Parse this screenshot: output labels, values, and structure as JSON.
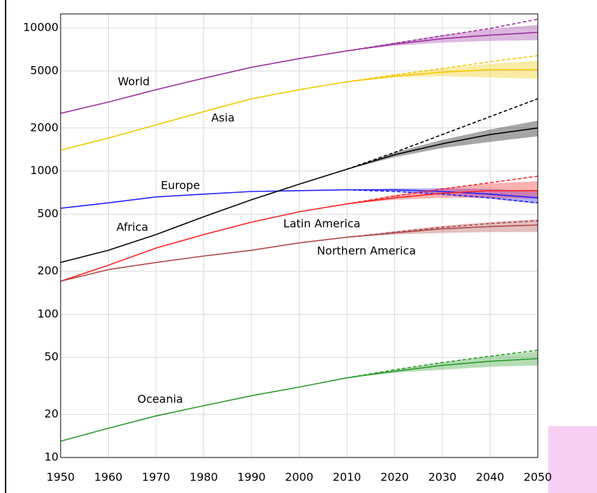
{
  "chart_data": {
    "type": "line",
    "log_scale_y": true,
    "grid": true,
    "x": [
      1950,
      1960,
      1970,
      1980,
      1990,
      2000,
      2010,
      2020,
      2030,
      2040,
      2050
    ],
    "xlim": [
      1950,
      2050
    ],
    "xticks": [
      1950,
      1960,
      1970,
      1980,
      1990,
      2000,
      2010,
      2020,
      2030,
      2040,
      2050
    ],
    "ylim": [
      10,
      10000
    ],
    "yticks": [
      10,
      20,
      50,
      100,
      200,
      500,
      1000,
      2000,
      5000,
      10000
    ],
    "series": [
      {
        "name": "World",
        "color": "#9b30a0",
        "values": [
          2530,
          3030,
          3700,
          4450,
          5300,
          6100,
          6900,
          7700,
          8400,
          8900,
          9300
        ],
        "projection": [
          null,
          null,
          null,
          null,
          null,
          null,
          6900,
          7800,
          8800,
          9900,
          11500
        ],
        "band_low": [
          null,
          null,
          null,
          null,
          null,
          null,
          6900,
          7500,
          7900,
          8100,
          8200
        ],
        "band_high": [
          null,
          null,
          null,
          null,
          null,
          null,
          6900,
          7900,
          8900,
          9800,
          10500
        ]
      },
      {
        "name": "Asia",
        "color": "#f2c800",
        "values": [
          1400,
          1700,
          2100,
          2600,
          3200,
          3700,
          4200,
          4600,
          4900,
          5100,
          5100
        ],
        "projection": [
          null,
          null,
          null,
          null,
          null,
          null,
          4200,
          4700,
          5200,
          5800,
          6400
        ],
        "band_low": [
          null,
          null,
          null,
          null,
          null,
          null,
          4200,
          4500,
          4600,
          4500,
          4400
        ],
        "band_high": [
          null,
          null,
          null,
          null,
          null,
          null,
          4200,
          4700,
          5200,
          5600,
          5900
        ]
      },
      {
        "name": "Europe",
        "color": "#2020ff",
        "values": [
          550,
          600,
          660,
          690,
          720,
          730,
          740,
          740,
          720,
          690,
          650
        ],
        "projection": [
          null,
          null,
          null,
          null,
          null,
          null,
          740,
          720,
          690,
          650,
          600
        ],
        "band_low": [
          null,
          null,
          null,
          null,
          null,
          null,
          740,
          720,
          680,
          640,
          590
        ],
        "band_high": [
          null,
          null,
          null,
          null,
          null,
          null,
          740,
          755,
          760,
          750,
          720
        ]
      },
      {
        "name": "Africa",
        "color": "#000000",
        "values": [
          230,
          280,
          360,
          480,
          630,
          810,
          1030,
          1300,
          1550,
          1800,
          2000
        ],
        "projection": [
          null,
          null,
          null,
          null,
          null,
          null,
          1030,
          1350,
          1800,
          2400,
          3200
        ],
        "band_low": [
          null,
          null,
          null,
          null,
          null,
          null,
          1030,
          1250,
          1450,
          1600,
          1750
        ],
        "band_high": [
          null,
          null,
          null,
          null,
          null,
          null,
          1030,
          1350,
          1650,
          1950,
          2250
        ]
      },
      {
        "name": "Latin America",
        "color": "#ff2020",
        "values": [
          170,
          220,
          290,
          360,
          440,
          520,
          590,
          650,
          700,
          730,
          730
        ],
        "projection": [
          null,
          null,
          null,
          null,
          null,
          null,
          590,
          670,
          750,
          830,
          920
        ],
        "band_low": [
          null,
          null,
          null,
          null,
          null,
          null,
          590,
          630,
          650,
          650,
          640
        ],
        "band_high": [
          null,
          null,
          null,
          null,
          null,
          null,
          590,
          680,
          760,
          820,
          850
        ]
      },
      {
        "name": "Northern America",
        "color": "#b04848",
        "values": [
          170,
          205,
          230,
          255,
          280,
          315,
          345,
          370,
          395,
          410,
          420
        ],
        "projection": [
          null,
          null,
          null,
          null,
          null,
          null,
          345,
          375,
          405,
          430,
          450
        ],
        "band_low": [
          null,
          null,
          null,
          null,
          null,
          null,
          345,
          360,
          370,
          375,
          375
        ],
        "band_high": [
          null,
          null,
          null,
          null,
          null,
          null,
          345,
          380,
          415,
          440,
          460
        ]
      },
      {
        "name": "Oceania",
        "color": "#2a9a2a",
        "values": [
          13,
          16,
          19.5,
          23,
          27,
          31,
          36,
          40,
          44,
          47,
          49
        ],
        "projection": [
          null,
          null,
          null,
          null,
          null,
          null,
          36,
          41,
          46,
          51,
          56
        ],
        "band_low": [
          null,
          null,
          null,
          null,
          null,
          null,
          36,
          39,
          41,
          43,
          44
        ],
        "band_high": [
          null,
          null,
          null,
          null,
          null,
          null,
          36,
          41,
          46,
          51,
          55
        ]
      }
    ]
  }
}
